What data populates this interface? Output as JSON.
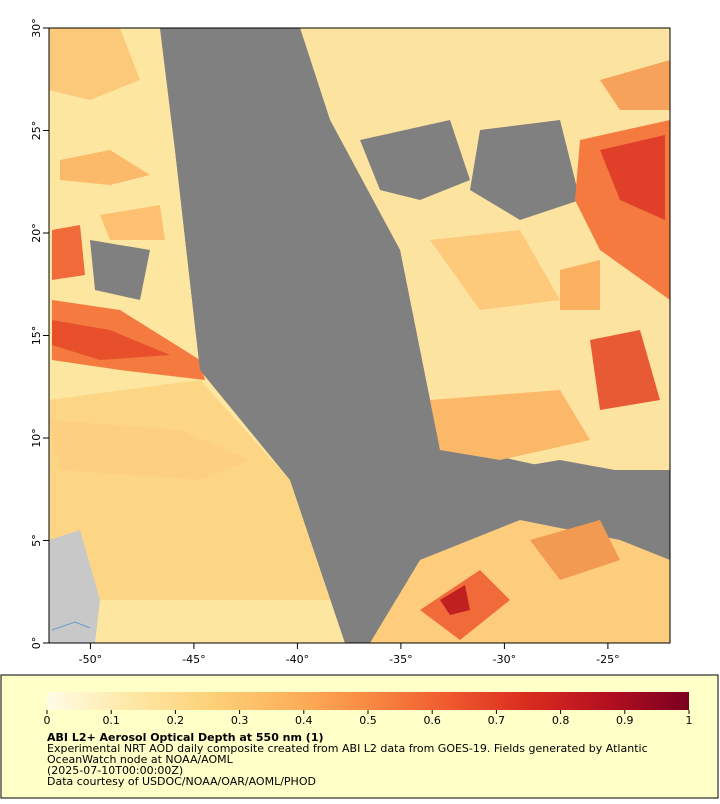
{
  "map": {
    "xlim": [
      -52,
      -22
    ],
    "ylim": [
      0,
      30
    ],
    "xticks": [
      {
        "value": -50,
        "label": "-50°"
      },
      {
        "value": -45,
        "label": "-45°"
      },
      {
        "value": -40,
        "label": "-40°"
      },
      {
        "value": -35,
        "label": "-35°"
      },
      {
        "value": -30,
        "label": "-30°"
      },
      {
        "value": -25,
        "label": "-25°"
      }
    ],
    "yticks": [
      {
        "value": 0,
        "label": "0°"
      },
      {
        "value": 5,
        "label": "5°"
      },
      {
        "value": 10,
        "label": "10°"
      },
      {
        "value": 15,
        "label": "15°"
      },
      {
        "value": 20,
        "label": "20°"
      },
      {
        "value": 25,
        "label": "25°"
      },
      {
        "value": 30,
        "label": "30°"
      }
    ]
  },
  "colorbar": {
    "range": [
      0,
      1
    ],
    "ticks": [
      0,
      0.1,
      0.2,
      0.3,
      0.4,
      0.5,
      0.6,
      0.7,
      0.8,
      0.9,
      1
    ],
    "colors": [
      "#fffbe6",
      "#fee9a8",
      "#fdd27a",
      "#fdb35c",
      "#f98a42",
      "#ef5a2e",
      "#d92b1e",
      "#b30f20",
      "#7a0020"
    ]
  },
  "caption": {
    "title": "ABI L2+ Aerosol Optical Depth at 550 nm (1)",
    "lines": [
      "Experimental NRT AOD daily composite created from ABI L2 data from GOES-19. Fields generated by Atlantic",
      "OceanWatch node at NOAA/AOML",
      "(2025-07-10T00:00:00Z)",
      "Data courtesy of USDOC/NOAA/OAR/AOML/PHOD"
    ]
  }
}
